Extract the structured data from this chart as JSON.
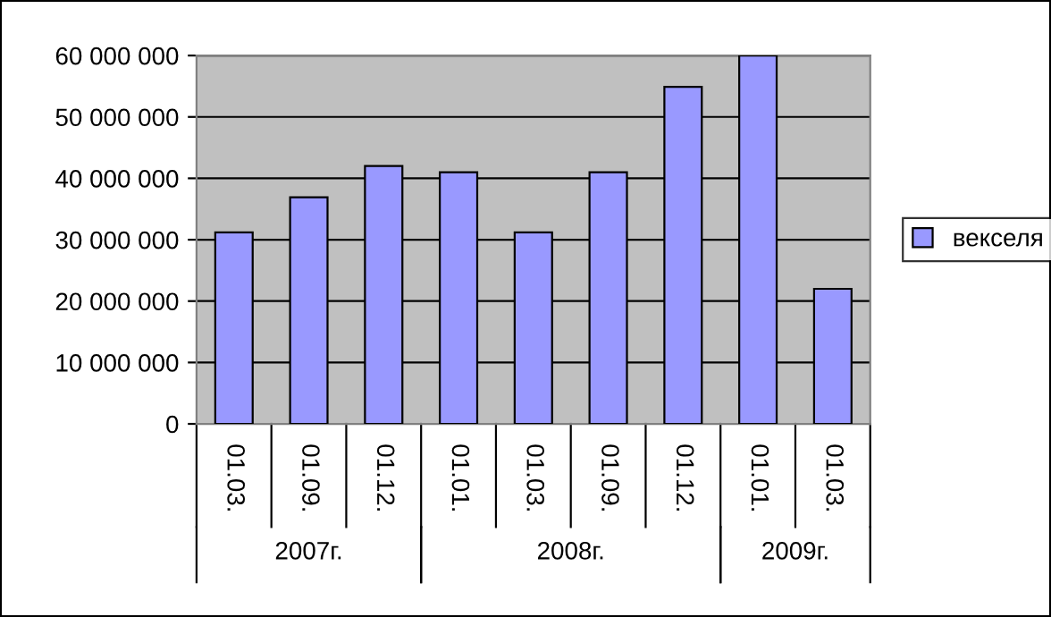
{
  "chart_data": {
    "type": "bar",
    "categories": [
      "01.03.",
      "01.09.",
      "01.12.",
      "01.01.",
      "01.03.",
      "01.09.",
      "01.12.",
      "01.01.",
      "01.03."
    ],
    "series": [
      {
        "name": "векселя",
        "color": "#9999ff",
        "values": [
          31200000,
          36900000,
          42000000,
          41000000,
          31200000,
          41000000,
          54900000,
          60000000,
          22000000
        ]
      }
    ],
    "annotations": [
      "2007г.",
      "2008г.",
      "2009г."
    ],
    "ylim": [
      0,
      60000000
    ],
    "yticks": [
      {
        "value": 0,
        "label": "0"
      },
      {
        "value": 10000000,
        "label": "10 000 000"
      },
      {
        "value": 20000000,
        "label": "20 000 000"
      },
      {
        "value": 30000000,
        "label": "30 000 000"
      },
      {
        "value": 40000000,
        "label": "40 000 000"
      },
      {
        "value": 50000000,
        "label": "50 000 000"
      },
      {
        "value": 60000000,
        "label": "60 000 000"
      }
    ],
    "grid": "y",
    "legend": "right"
  }
}
